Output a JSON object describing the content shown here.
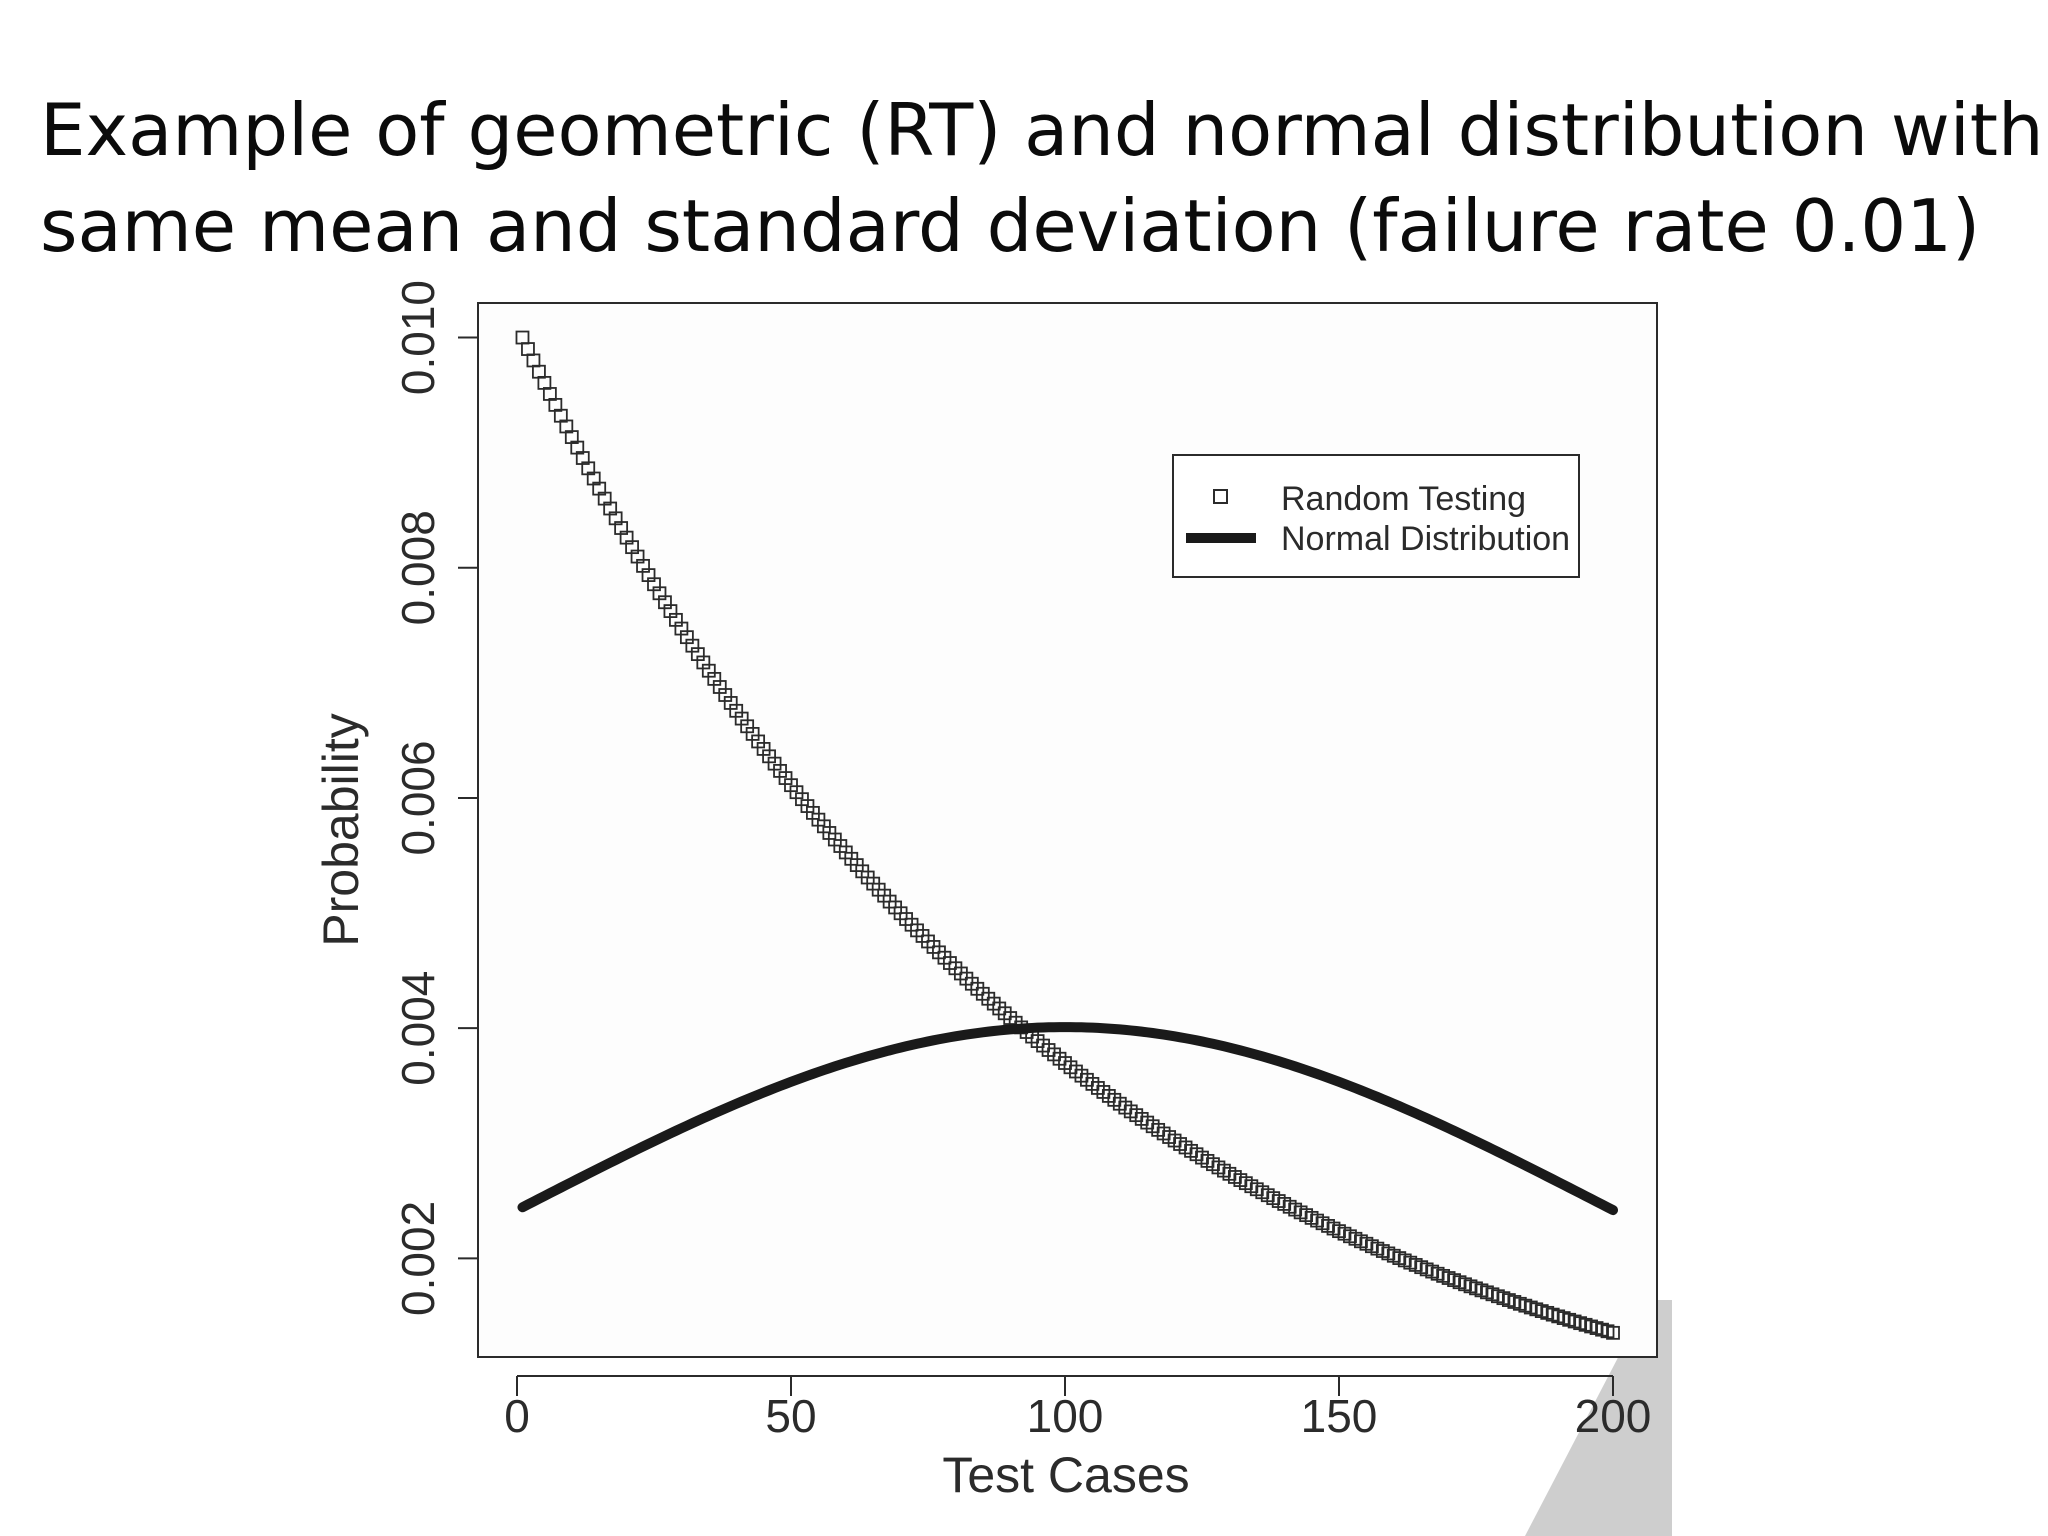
{
  "slide": {
    "title_line1": "Example of geometric (RT) and normal distribution with",
    "title_line2": "same mean and standard deviation (failure rate 0.01)"
  },
  "colors": {
    "ink": "#2b2b2b",
    "plot_bg": "#fdfdfd",
    "watermark": "#c9c9c9"
  },
  "chart_data": {
    "type": "scatter",
    "xlabel": "Test Cases",
    "ylabel": "Probability",
    "xlim": [
      0,
      200
    ],
    "ylim": [
      0.0011,
      0.0103
    ],
    "x_ticks": [
      0,
      50,
      100,
      150,
      200
    ],
    "x_tick_labels": [
      "0",
      "50",
      "100",
      "150",
      "200"
    ],
    "y_ticks": [
      0.002,
      0.004,
      0.006,
      0.008,
      0.01
    ],
    "y_tick_labels": [
      "0.002",
      "0.004",
      "0.006",
      "0.008",
      "0.010"
    ],
    "grid": false,
    "legend_position": "top-right",
    "series": [
      {
        "name": "Random Testing",
        "kind": "points",
        "marker": "open-square",
        "formula": "y = 0.01 * 0.99^(x-1)",
        "x_range": [
          1,
          200
        ],
        "y_start": 0.01,
        "y_end": 0.00137
      },
      {
        "name": "Normal Distribution",
        "kind": "line",
        "formula": "normal pdf, mean 100, sd 99.5",
        "mean": 100,
        "sd": 99.5,
        "x_range": [
          1,
          200
        ],
        "y_peak": 0.00401,
        "y_end": 0.00244
      }
    ]
  }
}
